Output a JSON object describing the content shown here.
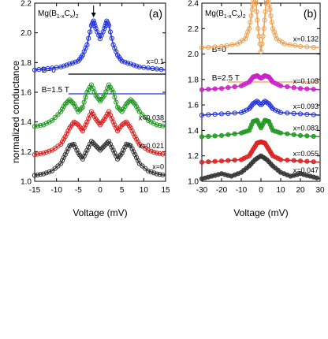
{
  "y_axis_label": "normalized conductance",
  "chart_data": [
    {
      "type": "line",
      "panel": "(a)",
      "compound": {
        "base": "Mg(B",
        "sub1": "1-x",
        "mid": "C",
        "sub2": "x",
        "close": ")",
        "sub3": "2"
      },
      "field_labels": [
        "B=0",
        "B=1.5 T"
      ],
      "field_marker_colors": [
        "#000000",
        "#2233dd"
      ],
      "xlabel": "Voltage (mV)",
      "xlim": [
        -15,
        15
      ],
      "ylim": [
        1.0,
        2.2
      ],
      "xticks": [
        -15,
        -10,
        -5,
        0,
        5,
        10,
        15
      ],
      "yticks": [
        1.0,
        1.2,
        1.4,
        1.6,
        1.8,
        2.0,
        2.2
      ],
      "arrow_at_x": -1.5,
      "series": [
        {
          "name": "x=0",
          "color": "#333333",
          "fill": false,
          "fields": [
            "B=0"
          ],
          "x": [
            -15,
            -13,
            -11,
            -9,
            -8,
            -7,
            -6,
            -5,
            -4,
            -3,
            -2,
            -1,
            0,
            1,
            2,
            3,
            4,
            5,
            6,
            7,
            8,
            9,
            11,
            13,
            15
          ],
          "y": [
            1.04,
            1.05,
            1.07,
            1.12,
            1.18,
            1.24,
            1.25,
            1.19,
            1.15,
            1.21,
            1.27,
            1.24,
            1.21,
            1.24,
            1.27,
            1.21,
            1.15,
            1.19,
            1.25,
            1.24,
            1.18,
            1.12,
            1.07,
            1.05,
            1.04
          ]
        },
        {
          "name": "x=0.021",
          "color": "#dd2222",
          "fill": false,
          "fields": [
            "B=0"
          ],
          "x": [
            -15,
            -13,
            -11,
            -9,
            -8,
            -7,
            -6,
            -5,
            -4,
            -3,
            -2,
            -1,
            0,
            1,
            2,
            3,
            4,
            5,
            6,
            7,
            8,
            9,
            11,
            13,
            15
          ],
          "y": [
            1.18,
            1.19,
            1.21,
            1.25,
            1.3,
            1.36,
            1.4,
            1.38,
            1.34,
            1.4,
            1.47,
            1.42,
            1.38,
            1.42,
            1.47,
            1.4,
            1.34,
            1.38,
            1.4,
            1.36,
            1.3,
            1.25,
            1.21,
            1.19,
            1.18
          ]
        },
        {
          "name": "x=0.038",
          "color": "#229922",
          "fill": false,
          "fields": [
            "B=0"
          ],
          "x": [
            -15,
            -13,
            -11,
            -9,
            -8,
            -7,
            -6,
            -5,
            -4,
            -3,
            -2,
            -1,
            0,
            1,
            2,
            3,
            4,
            5,
            6,
            7,
            8,
            9,
            11,
            13,
            15
          ],
          "y": [
            1.37,
            1.38,
            1.41,
            1.47,
            1.52,
            1.55,
            1.52,
            1.47,
            1.5,
            1.6,
            1.65,
            1.58,
            1.54,
            1.58,
            1.65,
            1.6,
            1.5,
            1.47,
            1.52,
            1.55,
            1.52,
            1.47,
            1.41,
            1.38,
            1.37
          ]
        },
        {
          "name": "x=0.1",
          "color": "#2233dd",
          "fill": false,
          "fields": [
            "B=0",
            "B=1.5 T"
          ],
          "x": [
            -15,
            -12,
            -9,
            -7,
            -5,
            -4,
            -3,
            -2,
            -1.5,
            -1,
            0,
            1,
            1.5,
            2,
            3,
            4,
            5,
            7,
            9,
            12,
            15
          ],
          "y": [
            1.75,
            1.76,
            1.77,
            1.79,
            1.81,
            1.85,
            1.92,
            2.05,
            2.08,
            2.03,
            1.96,
            2.03,
            2.08,
            2.05,
            1.92,
            1.85,
            1.81,
            1.79,
            1.77,
            1.76,
            1.75
          ]
        }
      ]
    },
    {
      "type": "line",
      "panel": "(b)",
      "compound": {
        "base": "Mg(B",
        "sub1": "1-x",
        "mid": "C",
        "sub2": "x",
        "close": ")",
        "sub3": "2"
      },
      "field_labels": [
        "B=0",
        "B=2.5 T"
      ],
      "field_marker_colors": [
        "#000000",
        "#f0a050"
      ],
      "xlabel": "Voltage (mV)",
      "xlim": [
        -30,
        30
      ],
      "ylim": [
        1.0,
        2.4
      ],
      "xticks": [
        -30,
        -20,
        -10,
        0,
        10,
        20,
        30
      ],
      "yticks": [
        1.0,
        1.2,
        1.4,
        1.6,
        1.8,
        2.0,
        2.2,
        2.4
      ],
      "series": [
        {
          "name": "x=0.047",
          "color": "#333333",
          "fill": true,
          "fields": [
            "B=0"
          ],
          "x": [
            -30,
            -25,
            -20,
            -15,
            -10,
            -6,
            -3,
            0,
            3,
            6,
            10,
            15,
            20,
            25,
            30
          ],
          "y": [
            1.02,
            1.04,
            1.06,
            1.04,
            1.07,
            1.12,
            1.17,
            1.2,
            1.17,
            1.12,
            1.07,
            1.04,
            1.06,
            1.04,
            1.02
          ]
        },
        {
          "name": "x=0.055",
          "color": "#dd2222",
          "fill": true,
          "fields": [
            "B=0"
          ],
          "x": [
            -30,
            -20,
            -10,
            -6,
            -4,
            -2,
            0,
            2,
            4,
            6,
            10,
            20,
            30
          ],
          "y": [
            1.15,
            1.16,
            1.17,
            1.2,
            1.25,
            1.3,
            1.31,
            1.3,
            1.25,
            1.2,
            1.17,
            1.16,
            1.15
          ]
        },
        {
          "name": "x=0.083",
          "color": "#229922",
          "fill": true,
          "fields": [
            "B=0"
          ],
          "x": [
            -30,
            -20,
            -10,
            -6,
            -4,
            -2,
            0,
            2,
            4,
            6,
            10,
            20,
            30
          ],
          "y": [
            1.35,
            1.36,
            1.38,
            1.4,
            1.47,
            1.48,
            1.42,
            1.48,
            1.47,
            1.4,
            1.38,
            1.36,
            1.35
          ]
        },
        {
          "name": "x=0.093",
          "color": "#2233dd",
          "fill": false,
          "fields": [
            "B=0"
          ],
          "x": [
            -30,
            -20,
            -10,
            -6,
            -4,
            -2,
            0,
            2,
            4,
            6,
            10,
            20,
            30
          ],
          "y": [
            1.52,
            1.53,
            1.54,
            1.57,
            1.61,
            1.63,
            1.6,
            1.63,
            1.61,
            1.57,
            1.54,
            1.53,
            1.52
          ]
        },
        {
          "name": "x=0.105",
          "color": "#cc22cc",
          "fill": true,
          "fields": [
            "B=0"
          ],
          "x": [
            -30,
            -20,
            -10,
            -6,
            -4,
            -2,
            0,
            2,
            4,
            6,
            10,
            20,
            30
          ],
          "y": [
            1.72,
            1.73,
            1.75,
            1.78,
            1.82,
            1.83,
            1.81,
            1.83,
            1.82,
            1.78,
            1.75,
            1.73,
            1.72
          ]
        },
        {
          "name": "x=0.132",
          "color": "#f0a050",
          "fill": false,
          "fields": [
            "B=0",
            "B=2.5 T"
          ],
          "x": [
            -30,
            -20,
            -12,
            -8,
            -6,
            -4.5,
            -3.5,
            -2.5,
            -1.5,
            0,
            1.5,
            2.5,
            3.5,
            4.5,
            6,
            8,
            12,
            20,
            30
          ],
          "y": [
            2.05,
            2.06,
            2.08,
            2.12,
            2.2,
            2.35,
            2.46,
            2.4,
            2.2,
            2.02,
            2.2,
            2.4,
            2.46,
            2.35,
            2.2,
            2.12,
            2.08,
            2.06,
            2.05
          ]
        }
      ]
    }
  ]
}
